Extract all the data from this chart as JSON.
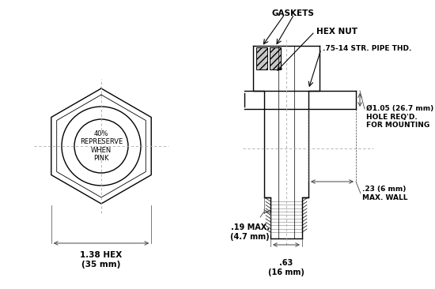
{
  "bg_color": "#ffffff",
  "line_color": "#000000",
  "dim_line_color": "#444444",
  "centerline_color": "#aaaaaa",
  "label_gaskets": "GASKETS",
  "label_hex_nut": "HEX NUT",
  "label_pipe_thd": ".75-14 STR. PIPE THD.",
  "label_hole": "Ø1.05 (26.7 mm)\nHOLE REQ'D.\nFOR MOUNTING",
  "label_wall": ".23 (6 mm)\nMAX. WALL",
  "label_19": ".19 MAX.\n(4.7 mm)",
  "label_63": ".63\n(16 mm)",
  "label_hex_dim": "1.38 HEX\n(35 mm)",
  "label_center": "40%\nREPRESERVE\nWHEN\nPINK"
}
